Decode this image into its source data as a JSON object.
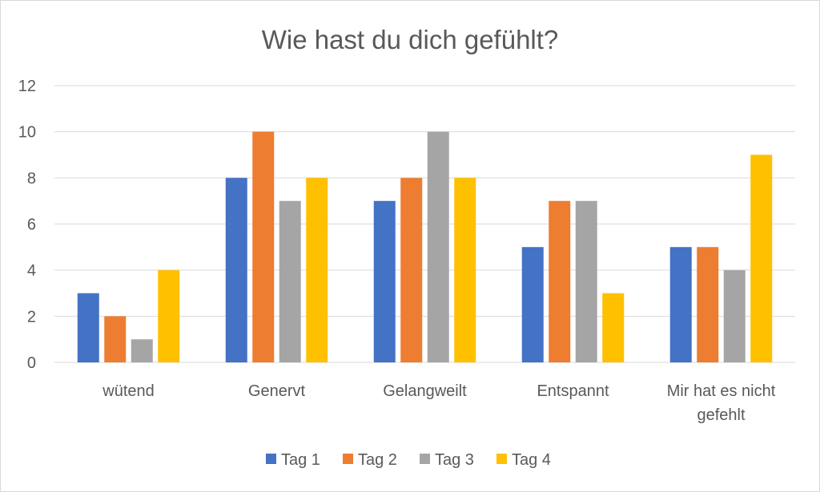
{
  "chart_data": {
    "type": "bar",
    "title": "Wie hast du dich gefühlt?",
    "xlabel": "",
    "ylabel": "",
    "ylim": [
      0,
      12
    ],
    "yticks": [
      0,
      2,
      4,
      6,
      8,
      10,
      12
    ],
    "grid": true,
    "legend_position": "bottom",
    "categories": [
      [
        "wütend"
      ],
      [
        "Genervt"
      ],
      [
        "Gelangweilt"
      ],
      [
        "Entspannt"
      ],
      [
        "Mir hat es nicht",
        "gefehlt"
      ]
    ],
    "series": [
      {
        "name": "Tag 1",
        "color": "#4472c4",
        "values": [
          3,
          8,
          7,
          5,
          5
        ]
      },
      {
        "name": "Tag 2",
        "color": "#ed7d31",
        "values": [
          2,
          10,
          8,
          7,
          5
        ]
      },
      {
        "name": "Tag 3",
        "color": "#a5a5a5",
        "values": [
          1,
          7,
          10,
          7,
          4
        ]
      },
      {
        "name": "Tag 4",
        "color": "#ffc000",
        "values": [
          4,
          8,
          8,
          3,
          9
        ]
      }
    ],
    "colors": {
      "grid": "#d9d9d9",
      "text": "#595959",
      "axis": "#d9d9d9"
    }
  }
}
